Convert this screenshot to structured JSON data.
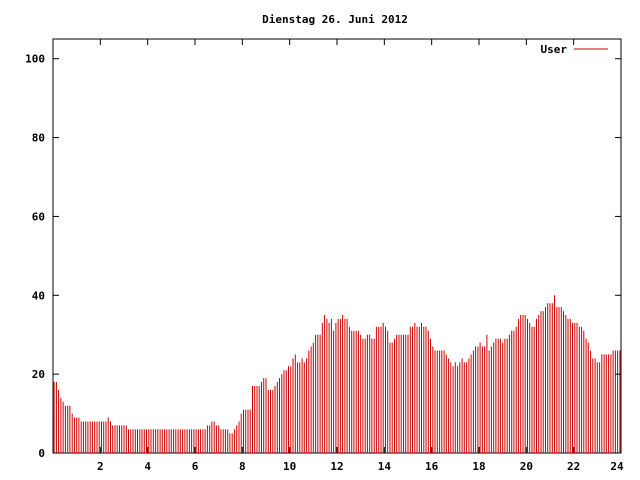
{
  "chart_data": {
    "type": "bar",
    "title": "Dienstag 26. Juni 2012",
    "xlabel": "",
    "ylabel": "",
    "xlim": [
      0,
      24
    ],
    "ylim": [
      0,
      105
    ],
    "x_ticks": [
      2,
      4,
      6,
      8,
      10,
      12,
      14,
      16,
      18,
      20,
      22,
      24
    ],
    "y_ticks": [
      0,
      20,
      40,
      60,
      80,
      100
    ],
    "grid": false,
    "legend_position": "top-right",
    "colors": {
      "series": "#cc0000",
      "axes": "#000000",
      "background": "#ffffff"
    },
    "series": [
      {
        "name": "User",
        "x_step_hours": 0.0833,
        "values": [
          18,
          18,
          16,
          14,
          13,
          12,
          12,
          12,
          10,
          9,
          9,
          9,
          8,
          8,
          8,
          8,
          8,
          8,
          8,
          8,
          8,
          8,
          8,
          8,
          9,
          8,
          7,
          7,
          7,
          7,
          7,
          7,
          7,
          6,
          6,
          6,
          6,
          6,
          6,
          6,
          6,
          6,
          6,
          6,
          6,
          6,
          6,
          6,
          6,
          6,
          6,
          6,
          6,
          6,
          6,
          6,
          6,
          6,
          6,
          6,
          6,
          6,
          6,
          6,
          6,
          6,
          6,
          6,
          7,
          7,
          8,
          8,
          7,
          7,
          6,
          6,
          6,
          6,
          5,
          5,
          6,
          7,
          8,
          10,
          11,
          11,
          11,
          11,
          17,
          17,
          17,
          17,
          18,
          19,
          19,
          16,
          16,
          16,
          17,
          18,
          19,
          20,
          21,
          21,
          22,
          22,
          24,
          25,
          23,
          23,
          24,
          23,
          24,
          26,
          27,
          28,
          30,
          30,
          30,
          33,
          35,
          34,
          33,
          34,
          31,
          33,
          34,
          34,
          35,
          34,
          34,
          32,
          31,
          31,
          31,
          31,
          30,
          29,
          29,
          30,
          30,
          29,
          29,
          32,
          32,
          32,
          33,
          32,
          31,
          28,
          28,
          29,
          30,
          30,
          30,
          30,
          30,
          30,
          32,
          32,
          33,
          32,
          32,
          33,
          32,
          32,
          31,
          29,
          27,
          26,
          26,
          26,
          26,
          26,
          25,
          24,
          23,
          22,
          23,
          22,
          23,
          24,
          23,
          23,
          24,
          25,
          26,
          27,
          27,
          28,
          27,
          27,
          30,
          26,
          27,
          28,
          29,
          29,
          29,
          28,
          29,
          29,
          30,
          31,
          31,
          32,
          34,
          35,
          35,
          35,
          34,
          33,
          32,
          32,
          34,
          35,
          36,
          36,
          37,
          38,
          38,
          38,
          40,
          37,
          37,
          37,
          36,
          35,
          34,
          34,
          33,
          33,
          33,
          32,
          32,
          31,
          29,
          28,
          26,
          24,
          24,
          23,
          23,
          25,
          25,
          25,
          25,
          25,
          26,
          26,
          26,
          26
        ]
      }
    ]
  }
}
